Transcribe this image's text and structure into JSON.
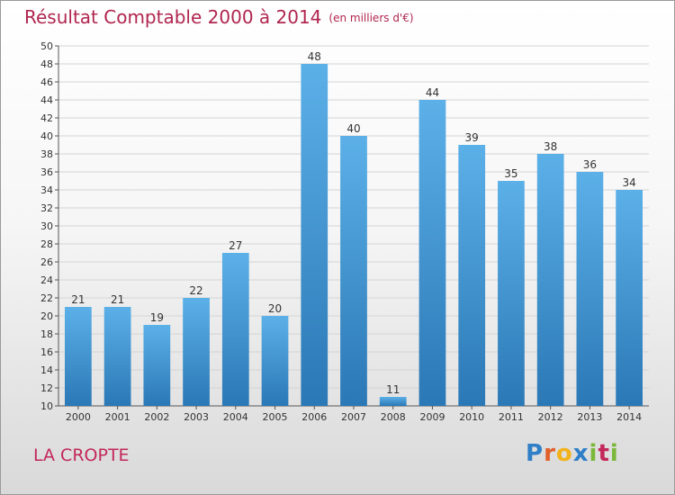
{
  "title": "Résultat Comptable 2000 à 2014",
  "unit": "(en milliers d'€)",
  "commune": "LA CROPTE",
  "logo": {
    "text": "Proxiti"
  },
  "colors": {
    "bar_light": "#5aaee6",
    "bar_dark": "#2a79b8",
    "title": "#b0254f"
  },
  "chart_data": {
    "type": "bar",
    "categories": [
      "2000",
      "2001",
      "2002",
      "2003",
      "2004",
      "2005",
      "2006",
      "2007",
      "2008",
      "2009",
      "2010",
      "2011",
      "2012",
      "2013",
      "2014"
    ],
    "values": [
      21,
      21,
      19,
      22,
      27,
      20,
      48,
      40,
      11,
      44,
      39,
      35,
      38,
      36,
      34
    ],
    "ylim": [
      10,
      50
    ],
    "ytick_step": 2,
    "grid": true,
    "legend": "none"
  }
}
